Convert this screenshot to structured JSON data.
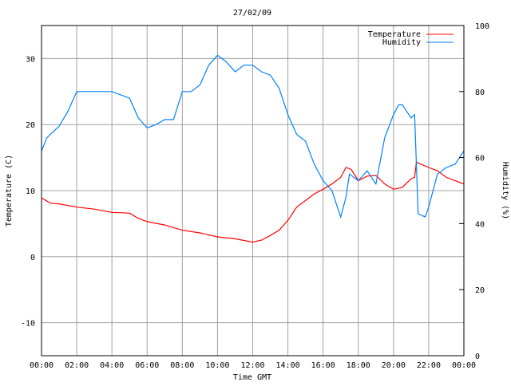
{
  "chart_data": {
    "type": "line",
    "title": "27/02/09",
    "xlabel": "Time GMT",
    "ylabel": "Temperature (C)",
    "y2label": "Humidity (%)",
    "xlim": [
      0,
      24
    ],
    "ylim": [
      -15,
      35
    ],
    "y2lim": [
      0,
      100
    ],
    "grid": true,
    "legend_position": "top-right",
    "x_ticks": [
      "00:00",
      "02:00",
      "04:00",
      "06:00",
      "08:00",
      "10:00",
      "12:00",
      "14:00",
      "16:00",
      "18:00",
      "20:00",
      "22:00",
      "00:00"
    ],
    "y_ticks": [
      30,
      20,
      10,
      0,
      -10
    ],
    "y2_ticks": [
      100,
      80,
      60,
      40,
      20,
      0
    ],
    "series": [
      {
        "name": "Temperature",
        "axis": "left",
        "color": "#ff0000",
        "x": [
          0,
          0.5,
          1,
          2,
          3,
          4,
          5,
          5.5,
          6,
          7,
          8,
          9,
          10,
          11,
          12,
          12.5,
          13,
          13.5,
          14,
          14.5,
          15,
          15.5,
          16,
          16.5,
          17,
          17.3,
          17.6,
          18,
          18.5,
          19,
          19.5,
          20,
          20.5,
          21,
          21.2,
          21.3,
          22,
          22.5,
          23,
          23.5,
          24
        ],
        "y": [
          8.9,
          8.1,
          8.0,
          7.5,
          7.2,
          6.7,
          6.6,
          5.8,
          5.3,
          4.8,
          4.0,
          3.6,
          3.0,
          2.7,
          2.2,
          2.5,
          3.2,
          4.0,
          5.5,
          7.5,
          8.5,
          9.5,
          10.2,
          11.0,
          12.0,
          13.5,
          13.2,
          11.5,
          12.2,
          12.3,
          11.0,
          10.2,
          10.5,
          11.8,
          12.0,
          14.3,
          13.5,
          13.0,
          12.0,
          11.5,
          11.0
        ]
      },
      {
        "name": "Humidity",
        "axis": "right",
        "color": "#0080ff",
        "x": [
          0,
          0.3,
          0.5,
          1,
          1.5,
          2,
          3,
          4,
          5,
          5.5,
          6,
          6.5,
          7,
          7.5,
          8,
          8.5,
          9,
          9.5,
          10,
          10.5,
          11,
          11.5,
          12,
          12.5,
          13,
          13.5,
          14,
          14.5,
          15,
          15.5,
          16,
          16.5,
          17,
          17.3,
          17.5,
          18,
          18.5,
          19,
          19.5,
          20,
          20.3,
          20.5,
          21,
          21.2,
          21.4,
          21.8,
          22,
          22.5,
          23,
          23.5,
          24
        ],
        "y": [
          62,
          66,
          67,
          69.5,
          74,
          80,
          80,
          80,
          78,
          72,
          69,
          70,
          71.5,
          71.5,
          80,
          80,
          82,
          88,
          91,
          89,
          86,
          88,
          88,
          86,
          85,
          81,
          73,
          67,
          65,
          58,
          53,
          50,
          42,
          48,
          55,
          53,
          56,
          52,
          66,
          73,
          76,
          76,
          72,
          73,
          43,
          42,
          45,
          55,
          57,
          58,
          62
        ]
      }
    ]
  }
}
